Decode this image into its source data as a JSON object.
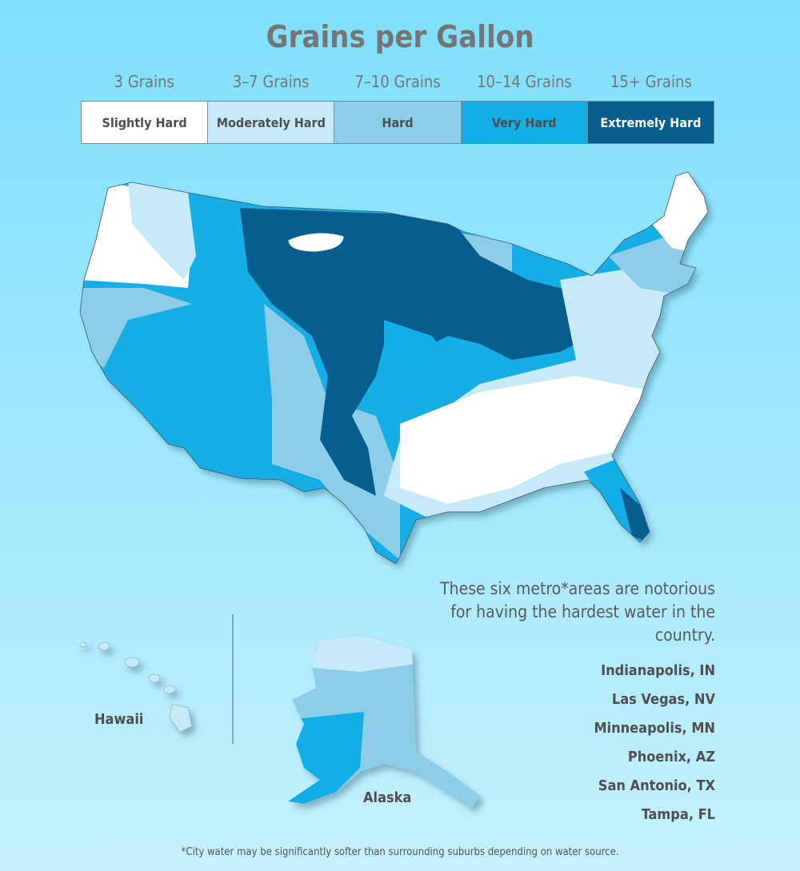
{
  "title": "Grains per Gallon",
  "legend": [
    {
      "grains": "3 Grains",
      "label": "Slightly Hard",
      "color": "#ffffff",
      "text_color": "#4f4f4f"
    },
    {
      "grains": "3–7 Grains",
      "label": "Moderately Hard",
      "color": "#c6eaf8",
      "text_color": "#4f4f4f"
    },
    {
      "grains": "7–10 Grains",
      "label": "Hard",
      "color": "#8dcde8",
      "text_color": "#4f4f4f"
    },
    {
      "grains": "10–14 Grains",
      "label": "Very Hard",
      "color": "#12aee5",
      "text_color": "#4f4f4f"
    },
    {
      "grains": "15+ Grains",
      "label": "Extremely Hard",
      "color": "#065e8f",
      "text_color": "#ffffff"
    }
  ],
  "map": {
    "hawaii_label": "Hawaii",
    "alaska_label": "Alaska"
  },
  "blurb": "These six metro*areas are notorious for having the hardest water in the country.",
  "cities": [
    "Indianapolis, IN",
    "Las Vegas, NV",
    "Minneapolis, MN",
    "Phoenix, AZ",
    "San Antonio, TX",
    "Tampa, FL"
  ],
  "footnote": "*City water may be significantly softer than surrounding suburbs depending on water source."
}
